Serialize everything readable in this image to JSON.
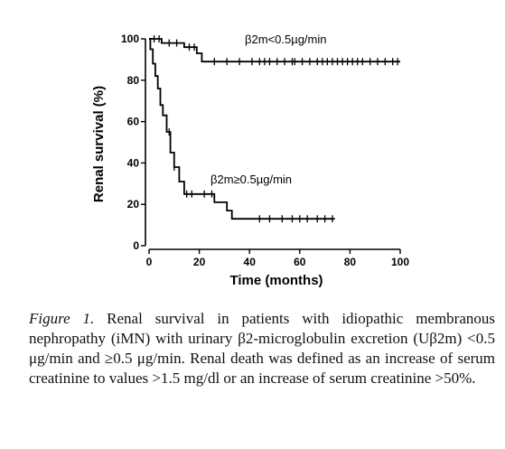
{
  "chart_data": {
    "type": "line",
    "subtype": "kaplan-meier",
    "xlabel": "Time (months)",
    "ylabel": "Renal survival (%)",
    "xlim": [
      0,
      100
    ],
    "ylim": [
      0,
      100
    ],
    "x_ticks": [
      0,
      20,
      40,
      60,
      80,
      100
    ],
    "y_ticks": [
      0,
      20,
      40,
      60,
      80,
      100
    ],
    "y_tick_labels": [
      "0",
      "20",
      "40",
      "60",
      "80",
      "100"
    ],
    "x_tick_labels": [
      "0",
      "20",
      "40",
      "60",
      "80",
      "100"
    ],
    "grid": false,
    "series": [
      {
        "name": "β2m<0.5μg/min",
        "label": "β2m<0.5µg/min",
        "color": "#000000",
        "steps": [
          [
            0,
            100
          ],
          [
            5,
            100
          ],
          [
            5,
            98
          ],
          [
            14,
            98
          ],
          [
            14,
            96
          ],
          [
            19,
            96
          ],
          [
            19,
            93
          ],
          [
            21,
            93
          ],
          [
            21,
            89
          ],
          [
            100,
            89
          ]
        ],
        "censored_x": [
          2,
          4,
          8,
          11,
          16,
          18,
          26,
          31,
          36,
          41,
          44,
          46,
          48,
          51,
          54,
          57,
          58,
          61,
          64,
          67,
          69,
          71,
          73,
          75,
          77,
          79,
          81,
          83,
          85,
          88,
          91,
          94,
          97,
          99
        ]
      },
      {
        "name": "β2m≥0.5μg/min",
        "label": "β2m≥0.5µg/min",
        "color": "#000000",
        "steps": [
          [
            0,
            100
          ],
          [
            0.5,
            100
          ],
          [
            0.5,
            95
          ],
          [
            1.5,
            95
          ],
          [
            1.5,
            88
          ],
          [
            2.5,
            88
          ],
          [
            2.5,
            82
          ],
          [
            3.5,
            82
          ],
          [
            3.5,
            76
          ],
          [
            4.5,
            76
          ],
          [
            4.5,
            68
          ],
          [
            5.5,
            68
          ],
          [
            5.5,
            63
          ],
          [
            7,
            63
          ],
          [
            7,
            55
          ],
          [
            8.5,
            55
          ],
          [
            8.5,
            45
          ],
          [
            10,
            45
          ],
          [
            10,
            38
          ],
          [
            12,
            38
          ],
          [
            12,
            31
          ],
          [
            14,
            31
          ],
          [
            14,
            25
          ],
          [
            26,
            25
          ],
          [
            26,
            21
          ],
          [
            31,
            21
          ],
          [
            31,
            17
          ],
          [
            33,
            17
          ],
          [
            33,
            13
          ],
          [
            74,
            13
          ]
        ],
        "censored_x": [
          8,
          10,
          15,
          17,
          22,
          25,
          44,
          48,
          53,
          57,
          60,
          63,
          67,
          70,
          73
        ]
      }
    ]
  },
  "caption": {
    "figure_label": "Figure 1.",
    "text": " Renal survival in patients with idiopathic membranous nephropathy (iMN) with urinary β2-microglobulin excretion (Uβ2m) <0.5 μg/min and ≥0.5 μg/min. Renal death was defined as an increase of serum creatinine to values >1.5 mg/dl or an increase of serum creatinine >50%."
  }
}
